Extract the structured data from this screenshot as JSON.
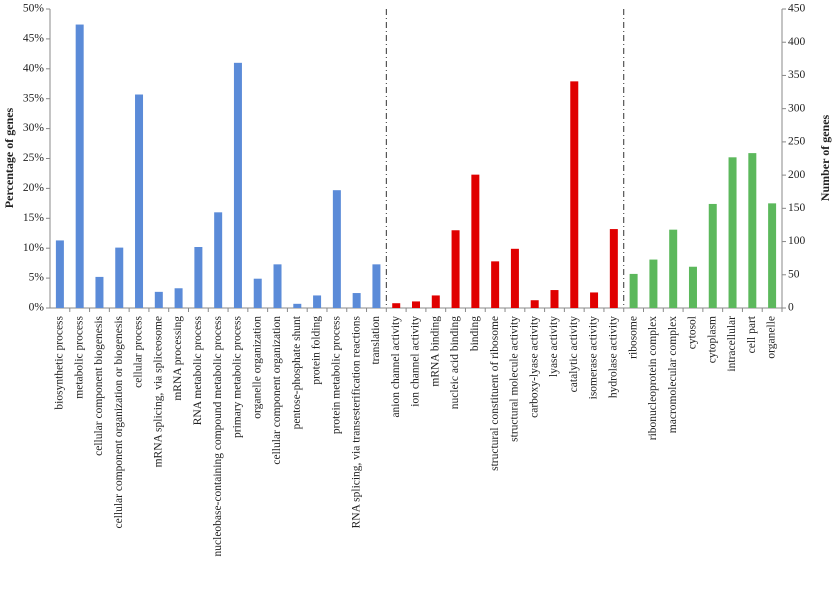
{
  "chart_data": {
    "type": "bar",
    "y_label": "Percentage of genes",
    "y2_label": "Number of genes",
    "categories": [
      "biosynthetic process",
      "metabolic process",
      "cellular component biogenesis",
      "cellular component organization or biogenesis",
      "cellular process",
      "mRNA splicing, via spliceosome",
      "mRNA processing",
      "RNA metabolic process",
      "nucleobase-containing compound metabolic process",
      "primary metabolic process",
      "organelle organization",
      "cellular component organization",
      "pentose-phosphate shunt",
      "protein folding",
      "protein metabolic process",
      "RNA splicing, via transesterification reactions",
      "translation",
      "anion channel activity",
      "ion channel activity",
      "mRNA binding",
      "nucleic acid binding",
      "binding",
      "structural constituent of ribosome",
      "structural molecule activity",
      "carboxy-lyase activity",
      "lyase activity",
      "catalytic activity",
      "isomerase activity",
      "hydrolase activity",
      "ribosome",
      "ribonucleoprotein complex",
      "macromolecular complex",
      "cytosol",
      "cytoplasm",
      "intracellular",
      "cell part",
      "organelle"
    ],
    "series": [
      {
        "color": "#5b8bd8",
        "values": [
          11.3,
          47.4,
          5.2,
          10.1,
          35.7,
          2.7,
          3.3,
          10.2,
          16.0,
          41.0,
          4.9,
          7.3,
          0.7,
          2.1,
          19.7,
          2.5,
          7.3,
          null,
          null,
          null,
          null,
          null,
          null,
          null,
          null,
          null,
          null,
          null,
          null,
          null,
          null,
          null,
          null,
          null,
          null,
          null,
          null
        ]
      },
      {
        "color": "#e00000",
        "values": [
          null,
          null,
          null,
          null,
          null,
          null,
          null,
          null,
          null,
          null,
          null,
          null,
          null,
          null,
          null,
          null,
          null,
          0.8,
          1.1,
          2.1,
          13.0,
          22.3,
          7.8,
          9.9,
          1.3,
          3.0,
          37.9,
          2.6,
          13.2,
          null,
          null,
          null,
          null,
          null,
          null,
          null,
          null
        ]
      },
      {
        "color": "#5cb85c",
        "values": [
          null,
          null,
          null,
          null,
          null,
          null,
          null,
          null,
          null,
          null,
          null,
          null,
          null,
          null,
          null,
          null,
          null,
          null,
          null,
          null,
          null,
          null,
          null,
          null,
          null,
          null,
          null,
          null,
          null,
          5.7,
          8.1,
          13.1,
          6.9,
          17.4,
          25.2,
          25.9,
          17.5
        ]
      }
    ],
    "ylim": [
      0,
      50
    ],
    "yticks": [
      {
        "value": 0,
        "label": "0%"
      },
      {
        "value": 5,
        "label": "5%"
      },
      {
        "value": 10,
        "label": "10%"
      },
      {
        "value": 15,
        "label": "15%"
      },
      {
        "value": 20,
        "label": "20%"
      },
      {
        "value": 25,
        "label": "25%"
      },
      {
        "value": 30,
        "label": "30%"
      },
      {
        "value": 35,
        "label": "35%"
      },
      {
        "value": 40,
        "label": "40%"
      },
      {
        "value": 45,
        "label": "45%"
      },
      {
        "value": 50,
        "label": "50%"
      }
    ],
    "y2lim": [
      0,
      450
    ],
    "y2ticks": [
      0,
      50,
      100,
      150,
      200,
      250,
      300,
      350,
      400,
      450
    ]
  }
}
